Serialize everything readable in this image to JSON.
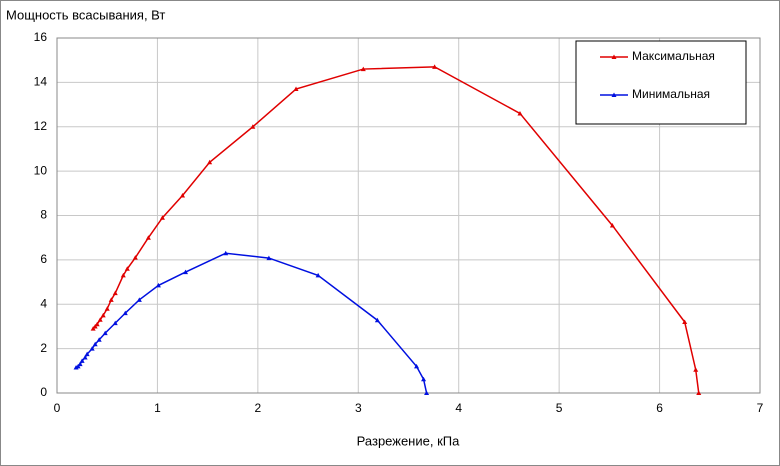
{
  "chart_data": {
    "type": "scatter",
    "y_label": "Мощность всасывания, Вт",
    "x_label": "Разрежение, кПа",
    "xlim": [
      0,
      7
    ],
    "xticks": [
      0,
      1,
      2,
      3,
      4,
      5,
      6,
      7
    ],
    "ylim": [
      0,
      16
    ],
    "yticks": [
      0,
      2,
      4,
      6,
      8,
      10,
      12,
      14,
      16
    ],
    "grid": true,
    "legend": "top-right",
    "series": [
      {
        "name": "Максимальная",
        "color": "#e00000",
        "x": [
          0.36,
          0.38,
          0.4,
          0.43,
          0.46,
          0.5,
          0.54,
          0.58,
          0.66,
          0.7,
          0.78,
          0.91,
          1.05,
          1.25,
          1.52,
          1.95,
          2.38,
          3.05,
          3.76,
          4.61,
          5.53,
          6.25,
          6.36,
          6.39
        ],
        "values": [
          2.9,
          3.0,
          3.1,
          3.3,
          3.5,
          3.8,
          4.2,
          4.5,
          5.3,
          5.6,
          6.1,
          7.0,
          7.9,
          8.9,
          10.4,
          12.0,
          13.7,
          14.6,
          14.7,
          12.6,
          7.55,
          3.2,
          1.05,
          0
        ]
      },
      {
        "name": "Минимальная",
        "color": "#0010e0",
        "x": [
          0.19,
          0.21,
          0.23,
          0.25,
          0.28,
          0.3,
          0.35,
          0.38,
          0.42,
          0.48,
          0.58,
          0.68,
          0.82,
          1.01,
          1.28,
          1.68,
          2.11,
          2.6,
          3.19,
          3.58,
          3.65,
          3.68
        ],
        "values": [
          1.15,
          1.2,
          1.3,
          1.45,
          1.6,
          1.75,
          2.0,
          2.2,
          2.4,
          2.7,
          3.15,
          3.6,
          4.2,
          4.85,
          5.45,
          6.3,
          6.08,
          5.3,
          3.28,
          1.2,
          0.62,
          0
        ]
      }
    ]
  }
}
